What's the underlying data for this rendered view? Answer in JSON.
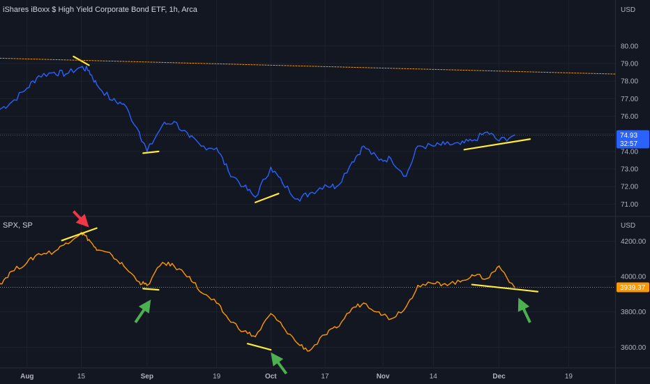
{
  "chart_data": [
    {
      "type": "line",
      "title": "iShares iBoxx $ High Yield Corporate Bond ETF, 1h, Arca",
      "currency_label": "USD",
      "y_ticks": [
        71.0,
        72.0,
        73.0,
        74.0,
        75.0,
        76.0,
        77.0,
        78.0,
        79.0,
        80.0
      ],
      "ylim": [
        70.5,
        81.5
      ],
      "line_color": "#2962ff",
      "last_price": {
        "value": 74.93,
        "label": "74.93",
        "countdown": "32:57",
        "color": "#2962ff"
      },
      "series": [
        {
          "x": [
            "2022-07-25",
            "2022-07-28",
            "2022-08-01",
            "2022-08-04",
            "2022-08-08",
            "2022-08-11",
            "2022-08-15",
            "2022-08-17",
            "2022-08-19",
            "2022-08-23",
            "2022-08-26",
            "2022-08-30",
            "2022-09-01",
            "2022-09-05",
            "2022-09-08",
            "2022-09-12",
            "2022-09-15",
            "2022-09-19",
            "2022-09-22",
            "2022-09-26",
            "2022-09-29",
            "2022-10-03",
            "2022-10-06",
            "2022-10-10",
            "2022-10-13",
            "2022-10-17",
            "2022-10-20",
            "2022-10-24",
            "2022-10-27",
            "2022-10-31",
            "2022-11-03",
            "2022-11-07",
            "2022-11-10",
            "2022-11-14",
            "2022-11-17",
            "2022-11-21",
            "2022-11-24",
            "2022-11-28",
            "2022-12-01",
            "2022-12-05"
          ],
          "values": [
            76.4,
            76.8,
            77.6,
            78.3,
            78.5,
            78.4,
            78.8,
            78.6,
            77.8,
            76.9,
            76.7,
            75.1,
            74.0,
            75.5,
            75.7,
            74.8,
            74.3,
            74.2,
            72.9,
            72.0,
            71.4,
            73.1,
            72.2,
            71.3,
            71.6,
            72.1,
            72.0,
            73.4,
            74.3,
            73.5,
            73.6,
            72.6,
            74.3,
            74.3,
            74.4,
            74.4,
            74.6,
            75.1,
            74.6,
            74.93
          ]
        }
      ],
      "trend_lines": [
        {
          "color": "#ffeb3b",
          "from": {
            "x": "2022-08-13",
            "y": 79.4
          },
          "to": {
            "x": "2022-08-17",
            "y": 78.9
          }
        },
        {
          "color": "#ffeb3b",
          "from": {
            "x": "2022-08-31",
            "y": 73.9
          },
          "to": {
            "x": "2022-09-04",
            "y": 74.0
          }
        },
        {
          "color": "#ffeb3b",
          "from": {
            "x": "2022-09-29",
            "y": 71.1
          },
          "to": {
            "x": "2022-10-05",
            "y": 71.6
          }
        },
        {
          "color": "#ffeb3b",
          "from": {
            "x": "2022-11-22",
            "y": 74.1
          },
          "to": {
            "x": "2022-12-09",
            "y": 74.7
          }
        },
        {
          "color": "#ff9800",
          "dashed": true,
          "from": {
            "x": "2022-07-25",
            "y": 79.3
          },
          "to": {
            "x": "2022-12-31",
            "y": 78.4
          }
        }
      ]
    },
    {
      "type": "line",
      "title": "SPX, SP",
      "currency_label": "USD",
      "y_ticks": [
        3600.0,
        3800.0,
        4000.0,
        4200.0
      ],
      "ylim": [
        3510,
        4270
      ],
      "line_color": "#ff9800",
      "last_price": {
        "value": 3939.37,
        "label": "3939.37",
        "color": "#ff9800"
      },
      "series": [
        {
          "x": [
            "2022-07-25",
            "2022-07-28",
            "2022-08-01",
            "2022-08-04",
            "2022-08-08",
            "2022-08-11",
            "2022-08-15",
            "2022-08-17",
            "2022-08-19",
            "2022-08-23",
            "2022-08-26",
            "2022-08-30",
            "2022-09-01",
            "2022-09-05",
            "2022-09-08",
            "2022-09-12",
            "2022-09-15",
            "2022-09-19",
            "2022-09-22",
            "2022-09-26",
            "2022-09-29",
            "2022-10-03",
            "2022-10-06",
            "2022-10-10",
            "2022-10-13",
            "2022-10-17",
            "2022-10-20",
            "2022-10-24",
            "2022-10-27",
            "2022-10-31",
            "2022-11-03",
            "2022-11-07",
            "2022-11-10",
            "2022-11-14",
            "2022-11-17",
            "2022-11-21",
            "2022-11-24",
            "2022-11-28",
            "2022-12-01",
            "2022-12-05"
          ],
          "values": [
            3960,
            4030,
            4080,
            4130,
            4140,
            4190,
            4250,
            4210,
            4150,
            4120,
            4060,
            3970,
            3950,
            4080,
            4060,
            4000,
            3910,
            3850,
            3760,
            3690,
            3660,
            3790,
            3720,
            3620,
            3580,
            3670,
            3710,
            3820,
            3850,
            3800,
            3760,
            3830,
            3950,
            3960,
            3960,
            3970,
            4010,
            3990,
            4060,
            3939.37
          ]
        }
      ],
      "trend_lines": [
        {
          "color": "#ffeb3b",
          "from": {
            "x": "2022-08-10",
            "y": 4205
          },
          "to": {
            "x": "2022-08-19",
            "y": 4275
          }
        },
        {
          "color": "#ffeb3b",
          "from": {
            "x": "2022-08-31",
            "y": 3932
          },
          "to": {
            "x": "2022-09-04",
            "y": 3925
          }
        },
        {
          "color": "#ffeb3b",
          "from": {
            "x": "2022-09-27",
            "y": 3620
          },
          "to": {
            "x": "2022-10-03",
            "y": 3585
          }
        },
        {
          "color": "#ffeb3b",
          "from": {
            "x": "2022-11-24",
            "y": 3955
          },
          "to": {
            "x": "2022-12-11",
            "y": 3915
          }
        }
      ],
      "arrows": [
        {
          "color": "#f23645",
          "tip": {
            "x": "2022-08-17",
            "y": 4280
          },
          "tail": {
            "x": "2022-08-13",
            "y": 4370
          }
        },
        {
          "color": "#4caf50",
          "tip": {
            "x": "2022-09-02",
            "y": 3870
          },
          "tail": {
            "x": "2022-08-29",
            "y": 3740
          }
        },
        {
          "color": "#4caf50",
          "tip": {
            "x": "2022-10-03",
            "y": 3570
          },
          "tail": {
            "x": "2022-10-07",
            "y": 3450
          }
        },
        {
          "color": "#4caf50",
          "tip": {
            "x": "2022-12-06",
            "y": 3880
          },
          "tail": {
            "x": "2022-12-09",
            "y": 3740
          }
        }
      ]
    }
  ],
  "time_axis": {
    "range": [
      "2022-07-25",
      "2022-12-31"
    ],
    "ticks": [
      {
        "label": "Aug",
        "date": "2022-08-01",
        "major": true
      },
      {
        "label": "15",
        "date": "2022-08-15",
        "major": false
      },
      {
        "label": "Sep",
        "date": "2022-09-01",
        "major": true
      },
      {
        "label": "19",
        "date": "2022-09-19",
        "major": false
      },
      {
        "label": "Oct",
        "date": "2022-10-03",
        "major": true
      },
      {
        "label": "17",
        "date": "2022-10-17",
        "major": false
      },
      {
        "label": "Nov",
        "date": "2022-11-01",
        "major": true
      },
      {
        "label": "14",
        "date": "2022-11-14",
        "major": false
      },
      {
        "label": "Dec",
        "date": "2022-12-01",
        "major": true
      },
      {
        "label": "19",
        "date": "2022-12-19",
        "major": false
      }
    ]
  },
  "theme": {
    "background": "#131722",
    "grid": "#1e222d",
    "pane_separator": "#2a2e39",
    "text": "#b2b5be"
  }
}
